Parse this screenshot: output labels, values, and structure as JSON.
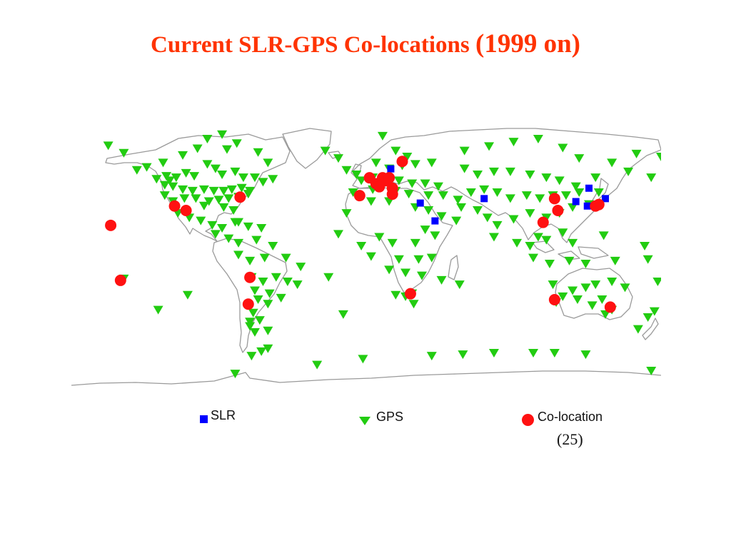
{
  "title": {
    "main": "Current SLR-GPS Co-locations ",
    "year": "(1999 on)"
  },
  "legend": {
    "slr_label": "SLR",
    "gps_label": "GPS",
    "colocation_label": "Co-location",
    "colocation_count": "(25)"
  },
  "colors": {
    "slr": "#0000ff",
    "gps": "#22cc11",
    "colocation": "#ff1111",
    "coastline": "#9a9a9a",
    "title": "#ff3300"
  },
  "map": {
    "projection": "equirectangular",
    "gps_stations": [
      [
        -157.5,
        73.5
      ],
      [
        -148,
        68.5
      ],
      [
        -124,
        62
      ],
      [
        -112,
        67
      ],
      [
        -103,
        71.5
      ],
      [
        -97,
        78
      ],
      [
        -88,
        81
      ],
      [
        -85,
        71
      ],
      [
        -79,
        75
      ],
      [
        -66,
        69
      ],
      [
        -60,
        62
      ],
      [
        -140,
        57
      ],
      [
        -134,
        59
      ],
      [
        -122,
        53
      ],
      [
        -128,
        51
      ],
      [
        -120,
        50
      ],
      [
        -116,
        52
      ],
      [
        -110,
        55
      ],
      [
        -105,
        53
      ],
      [
        -97,
        61
      ],
      [
        -92,
        58
      ],
      [
        -88,
        54
      ],
      [
        -80,
        56
      ],
      [
        -75,
        52
      ],
      [
        -68,
        52
      ],
      [
        -63,
        49
      ],
      [
        -57,
        51
      ],
      [
        -123,
        47
      ],
      [
        -118,
        46
      ],
      [
        -112,
        44
      ],
      [
        -106,
        43
      ],
      [
        -99,
        44
      ],
      [
        -93,
        43
      ],
      [
        -87,
        43
      ],
      [
        -82,
        44
      ],
      [
        -76,
        45
      ],
      [
        -71,
        43
      ],
      [
        -123,
        40
      ],
      [
        -118,
        36
      ],
      [
        -111,
        38
      ],
      [
        -104,
        38
      ],
      [
        -96,
        36
      ],
      [
        -90,
        37
      ],
      [
        -84,
        38
      ],
      [
        -78,
        39
      ],
      [
        -72,
        41
      ],
      [
        -99,
        33
      ],
      [
        -87,
        32
      ],
      [
        -81,
        30
      ],
      [
        -115,
        28
      ],
      [
        -108,
        25
      ],
      [
        -101,
        23
      ],
      [
        -94,
        20
      ],
      [
        -88,
        18
      ],
      [
        -80,
        22
      ],
      [
        -72,
        19
      ],
      [
        -64,
        18
      ],
      [
        -92,
        14
      ],
      [
        -84,
        11
      ],
      [
        -78,
        8
      ],
      [
        -67,
        10
      ],
      [
        -57,
        6
      ],
      [
        -78,
        0
      ],
      [
        -71,
        -4
      ],
      [
        -62,
        -2
      ],
      [
        -49,
        -2
      ],
      [
        -40,
        -8
      ],
      [
        -70,
        -15
      ],
      [
        -63,
        -18
      ],
      [
        -55,
        -15
      ],
      [
        -48,
        -18
      ],
      [
        -42,
        -20
      ],
      [
        -68,
        -24
      ],
      [
        -59,
        -26
      ],
      [
        -52,
        -29
      ],
      [
        -66,
        -30
      ],
      [
        -60,
        -33
      ],
      [
        -69,
        -39
      ],
      [
        -71,
        -45
      ],
      [
        -65,
        -44
      ],
      [
        -71,
        -48
      ],
      [
        -68,
        -52
      ],
      [
        -60,
        -51
      ],
      [
        -148,
        -16
      ],
      [
        -109,
        -27
      ],
      [
        -127,
        -37
      ],
      [
        -25,
        70
      ],
      [
        -17,
        65
      ],
      [
        -12,
        57
      ],
      [
        -6,
        54
      ],
      [
        -3,
        50
      ],
      [
        -8,
        42
      ],
      [
        -12,
        28
      ],
      [
        -17,
        14
      ],
      [
        -3,
        6
      ],
      [
        -23,
        -15
      ],
      [
        -14,
        -40
      ],
      [
        10,
        80
      ],
      [
        18,
        70
      ],
      [
        25,
        66
      ],
      [
        6,
        62
      ],
      [
        14,
        58
      ],
      [
        22,
        60
      ],
      [
        30,
        61
      ],
      [
        40,
        62
      ],
      [
        4,
        52
      ],
      [
        12,
        52
      ],
      [
        20,
        50
      ],
      [
        28,
        48
      ],
      [
        36,
        48
      ],
      [
        44,
        46
      ],
      [
        4,
        44
      ],
      [
        18,
        43
      ],
      [
        26,
        41
      ],
      [
        38,
        40
      ],
      [
        47,
        40
      ],
      [
        56,
        37
      ],
      [
        3,
        36
      ],
      [
        14,
        36
      ],
      [
        30,
        32
      ],
      [
        38,
        30
      ],
      [
        46,
        26
      ],
      [
        55,
        23
      ],
      [
        36,
        17
      ],
      [
        42,
        13
      ],
      [
        8,
        12
      ],
      [
        16,
        8
      ],
      [
        30,
        8
      ],
      [
        3,
        -1
      ],
      [
        20,
        -3
      ],
      [
        32,
        -3
      ],
      [
        40,
        -2
      ],
      [
        14,
        -10
      ],
      [
        24,
        -12
      ],
      [
        34,
        -14
      ],
      [
        46,
        -17
      ],
      [
        57,
        -20
      ],
      [
        18,
        -27
      ],
      [
        24,
        -28
      ],
      [
        28,
        -26
      ],
      [
        29,
        -33
      ],
      [
        60,
        70
      ],
      [
        75,
        73
      ],
      [
        90,
        76
      ],
      [
        105,
        78
      ],
      [
        120,
        72
      ],
      [
        130,
        65
      ],
      [
        150,
        62
      ],
      [
        165,
        68
      ],
      [
        180,
        66
      ],
      [
        60,
        58
      ],
      [
        68,
        54
      ],
      [
        78,
        56
      ],
      [
        88,
        56
      ],
      [
        100,
        54
      ],
      [
        110,
        52
      ],
      [
        118,
        50
      ],
      [
        128,
        46
      ],
      [
        140,
        52
      ],
      [
        160,
        56
      ],
      [
        174,
        52
      ],
      [
        64,
        42
      ],
      [
        72,
        44
      ],
      [
        80,
        42
      ],
      [
        88,
        38
      ],
      [
        98,
        40
      ],
      [
        106,
        38
      ],
      [
        114,
        40
      ],
      [
        122,
        40
      ],
      [
        130,
        42
      ],
      [
        142,
        42
      ],
      [
        58,
        32
      ],
      [
        68,
        30
      ],
      [
        74,
        25
      ],
      [
        80,
        20
      ],
      [
        90,
        24
      ],
      [
        100,
        28
      ],
      [
        110,
        25
      ],
      [
        118,
        28
      ],
      [
        126,
        32
      ],
      [
        136,
        34
      ],
      [
        78,
        12
      ],
      [
        92,
        8
      ],
      [
        100,
        6
      ],
      [
        105,
        12
      ],
      [
        110,
        10
      ],
      [
        120,
        15
      ],
      [
        126,
        8
      ],
      [
        145,
        13
      ],
      [
        170,
        6
      ],
      [
        102,
        -2
      ],
      [
        112,
        -6
      ],
      [
        124,
        -4
      ],
      [
        134,
        -6
      ],
      [
        152,
        -4
      ],
      [
        172,
        -3
      ],
      [
        114,
        -20
      ],
      [
        120,
        -28
      ],
      [
        126,
        -24
      ],
      [
        134,
        -22
      ],
      [
        140,
        -20
      ],
      [
        150,
        -18
      ],
      [
        158,
        -22
      ],
      [
        116,
        -32
      ],
      [
        129,
        -30
      ],
      [
        138,
        -34
      ],
      [
        144,
        -30
      ],
      [
        150,
        -37
      ],
      [
        146,
        -40
      ],
      [
        178,
        -18
      ],
      [
        176,
        -38
      ],
      [
        172,
        -42
      ],
      [
        166,
        -50
      ],
      [
        134,
        -67
      ],
      [
        115,
        -66
      ],
      [
        102,
        -66
      ],
      [
        78,
        -66
      ],
      [
        59,
        -67
      ],
      [
        40,
        -68
      ],
      [
        -2,
        -70
      ],
      [
        -60,
        -63
      ],
      [
        -64,
        -65
      ],
      [
        -70,
        -68
      ],
      [
        -30,
        -74
      ],
      [
        174,
        -78
      ],
      [
        -80,
        -80
      ],
      [
        -78,
        22
      ]
    ],
    "slr_stations": [
      [
        33,
        35
      ],
      [
        42,
        23
      ],
      [
        72,
        38
      ],
      [
        128,
        36
      ],
      [
        136,
        45
      ],
      [
        146,
        38
      ],
      [
        15,
        58
      ],
      [
        135,
        33
      ]
    ],
    "colocations": [
      [
        -156,
        20
      ],
      [
        -150,
        -17
      ],
      [
        -117,
        33
      ],
      [
        -110,
        30
      ],
      [
        -77,
        39
      ],
      [
        -71,
        -15
      ],
      [
        -72,
        -33
      ],
      [
        -4,
        40
      ],
      [
        2,
        52
      ],
      [
        6,
        48
      ],
      [
        10,
        52
      ],
      [
        12,
        50
      ],
      [
        14,
        52
      ],
      [
        8,
        46
      ],
      [
        16,
        45
      ],
      [
        22,
        63
      ],
      [
        16,
        41
      ],
      [
        27,
        -26
      ],
      [
        115,
        38
      ],
      [
        117,
        30
      ],
      [
        108,
        22
      ],
      [
        140,
        33
      ],
      [
        142,
        34
      ],
      [
        115,
        -30
      ],
      [
        149,
        -35
      ]
    ]
  }
}
